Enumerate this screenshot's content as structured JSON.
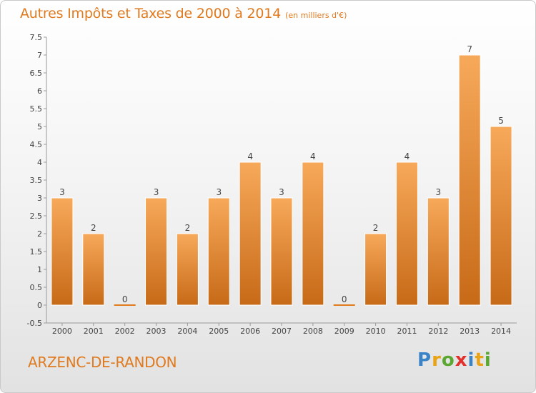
{
  "header": {
    "title": "Autres Impôts et Taxes de 2000 à 2014",
    "unit": "(en milliers d'€)"
  },
  "footer": {
    "commune": "ARZENC-DE-RANDON",
    "logo_letters": [
      "P",
      "r",
      "o",
      "x",
      "i",
      "t",
      "i"
    ]
  },
  "colors": {
    "accent": "#e07a1f",
    "bar_top": "#f7a95a",
    "bar_bottom": "#c76a17"
  },
  "chart_data": {
    "type": "bar",
    "title": "Autres Impôts et Taxes de 2000 à 2014",
    "subtitle": "(en milliers d'€)",
    "categories": [
      "2000",
      "2001",
      "2002",
      "2003",
      "2004",
      "2005",
      "2006",
      "2007",
      "2008",
      "2009",
      "2010",
      "2011",
      "2012",
      "2013",
      "2014"
    ],
    "values": [
      3,
      2,
      0,
      3,
      2,
      3,
      4,
      3,
      4,
      0,
      2,
      4,
      3,
      7,
      5
    ],
    "data_labels": [
      "3",
      "2",
      "0",
      "3",
      "2",
      "3",
      "4",
      "3",
      "4",
      "0",
      "2",
      "4",
      "3",
      "7",
      "5"
    ],
    "ylim": [
      -0.5,
      7.5
    ],
    "y_ticks": [
      "-0.5",
      "0",
      "0.5",
      "1",
      "1.5",
      "2",
      "2.5",
      "3",
      "3.5",
      "4",
      "4.5",
      "5",
      "5.5",
      "6",
      "6.5",
      "7",
      "7.5"
    ],
    "xlabel": "",
    "ylabel": "",
    "grid": false,
    "legend": "none"
  }
}
